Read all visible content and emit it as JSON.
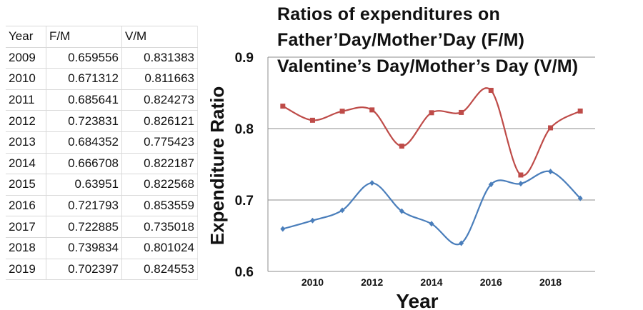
{
  "table": {
    "headers": [
      "Year",
      "F/M",
      "V/M"
    ],
    "rows": [
      [
        "2009",
        "0.659556",
        "0.831383"
      ],
      [
        "2010",
        "0.671312",
        "0.811663"
      ],
      [
        "2011",
        "0.685641",
        "0.824273"
      ],
      [
        "2012",
        "0.723831",
        "0.826121"
      ],
      [
        "2013",
        "0.684352",
        "0.775423"
      ],
      [
        "2014",
        "0.666708",
        "0.822187"
      ],
      [
        "2015",
        "0.63951",
        "0.822568"
      ],
      [
        "2016",
        "0.721793",
        "0.853559"
      ],
      [
        "2017",
        "0.722885",
        "0.735018"
      ],
      [
        "2018",
        "0.739834",
        "0.801024"
      ],
      [
        "2019",
        "0.702397",
        "0.824553"
      ]
    ]
  },
  "chart_data": {
    "type": "line",
    "title_lines": [
      "Ratios of expenditures on",
      "Father’Day/Mother’Day (F/M)",
      "Valentine’s Day/Mother’s Day (V/M)"
    ],
    "xlabel": "Year",
    "ylabel": "Expenditure Ratio",
    "x": [
      2009,
      2010,
      2011,
      2012,
      2013,
      2014,
      2015,
      2016,
      2017,
      2018,
      2019
    ],
    "xlim": [
      2008.5,
      2019.5
    ],
    "ylim": [
      0.6,
      0.9
    ],
    "xticks": [
      2010,
      2012,
      2014,
      2016,
      2018
    ],
    "xtick_labels": [
      "2010",
      "2012",
      "2014",
      "2016",
      "2018"
    ],
    "yticks": [
      0.6,
      0.7,
      0.8,
      0.9
    ],
    "ytick_labels": [
      "0.6",
      "0.7",
      "0.8",
      "0.9"
    ],
    "grid": true,
    "series": [
      {
        "name": "F/M",
        "color": "#4a7ebb",
        "marker": "diamond",
        "values": [
          0.659556,
          0.671312,
          0.685641,
          0.723831,
          0.684352,
          0.666708,
          0.63951,
          0.721793,
          0.722885,
          0.739834,
          0.702397
        ]
      },
      {
        "name": "V/M",
        "color": "#be4b48",
        "marker": "square",
        "values": [
          0.831383,
          0.811663,
          0.824273,
          0.826121,
          0.775423,
          0.822187,
          0.822568,
          0.853559,
          0.735018,
          0.801024,
          0.824553
        ]
      }
    ]
  }
}
